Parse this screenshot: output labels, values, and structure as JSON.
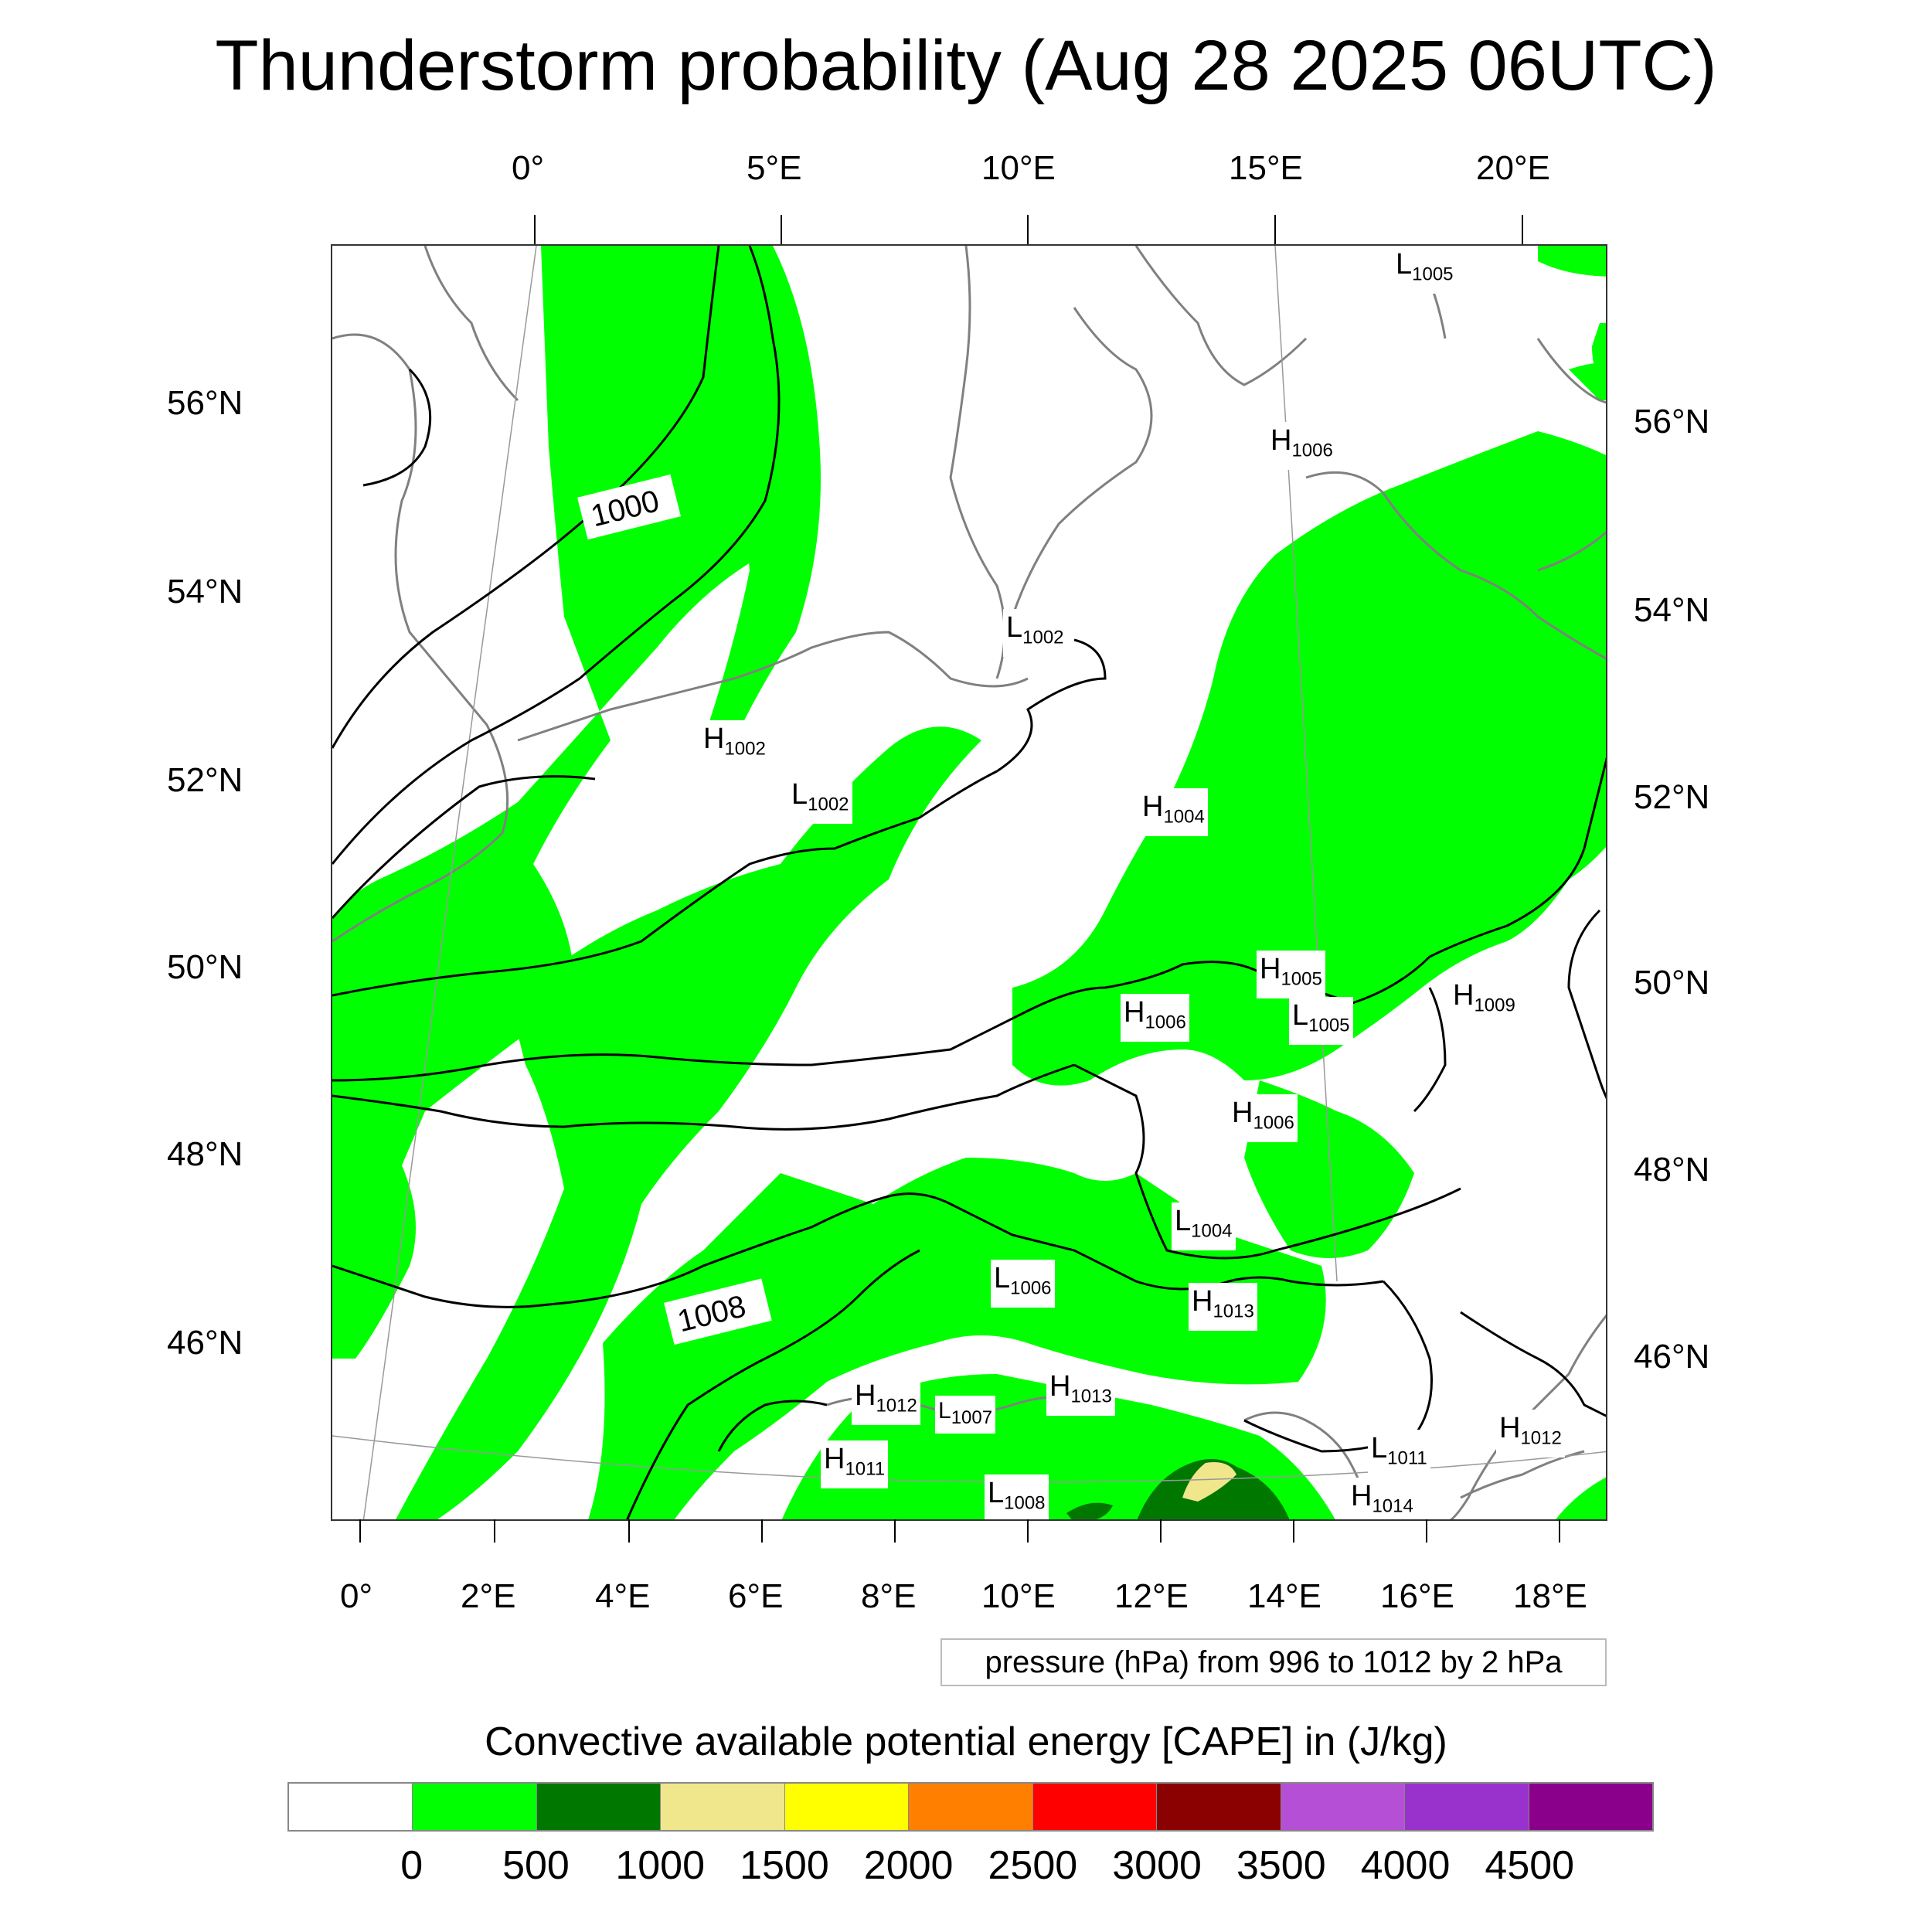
{
  "title": "Thunderstorm probability (Aug 28 2025 06UTC)",
  "top_axis_labels": [
    "0°",
    "5°E",
    "10°E",
    "15°E",
    "20°E"
  ],
  "bottom_axis_labels": [
    "0°",
    "2°E",
    "4°E",
    "6°E",
    "8°E",
    "10°E",
    "12°E",
    "14°E",
    "16°E",
    "18°E"
  ],
  "left_axis_labels": [
    "56°N",
    "54°N",
    "52°N",
    "50°N",
    "48°N",
    "46°N"
  ],
  "right_axis_labels": [
    "56°N",
    "54°N",
    "52°N",
    "50°N",
    "48°N",
    "46°N"
  ],
  "pressure_note": "pressure (hPa) from 996 to 1012 by 2 hPa",
  "isobar_labels": [
    "1000",
    "1008"
  ],
  "pressure_centers": [
    {
      "t": "L",
      "v": "1005"
    },
    {
      "t": "H",
      "v": "1006"
    },
    {
      "t": "L",
      "v": "1002"
    },
    {
      "t": "H",
      "v": "1002"
    },
    {
      "t": "L",
      "v": "1002"
    },
    {
      "t": "H",
      "v": "1004"
    },
    {
      "t": "H",
      "v": "1005"
    },
    {
      "t": "L",
      "v": "1005"
    },
    {
      "t": "H",
      "v": "1009"
    },
    {
      "t": "H",
      "v": "1006"
    },
    {
      "t": "H",
      "v": "1006"
    },
    {
      "t": "L",
      "v": "1004"
    },
    {
      "t": "L",
      "v": "1006"
    },
    {
      "t": "H",
      "v": "1013"
    },
    {
      "t": "H",
      "v": "1013"
    },
    {
      "t": "H",
      "v": "1012"
    },
    {
      "t": "L",
      "v": "1007"
    },
    {
      "t": "H",
      "v": "1011"
    },
    {
      "t": "L",
      "v": "1008"
    },
    {
      "t": "L",
      "v": "1011"
    },
    {
      "t": "H",
      "v": "1014"
    },
    {
      "t": "H",
      "v": "1012"
    }
  ],
  "colorbar": {
    "title": "Convective available potential energy [CAPE] in (J/kg)",
    "colors": [
      "#ffffff",
      "#00ff00",
      "#007800",
      "#f0e68c",
      "#ffff00",
      "#ff8000",
      "#ff0000",
      "#8b0000",
      "#b44fd6",
      "#9932cc",
      "#8b008b"
    ],
    "labels": [
      "0",
      "500",
      "1000",
      "1500",
      "2000",
      "2500",
      "3000",
      "3500",
      "4000",
      "4500"
    ]
  }
}
